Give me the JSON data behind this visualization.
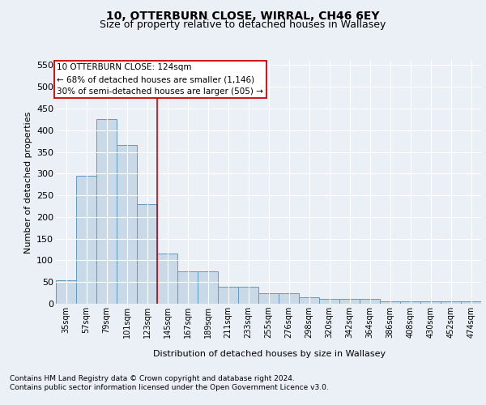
{
  "title1": "10, OTTERBURN CLOSE, WIRRAL, CH46 6EY",
  "title2": "Size of property relative to detached houses in Wallasey",
  "xlabel": "Distribution of detached houses by size in Wallasey",
  "ylabel": "Number of detached properties",
  "categories": [
    "35sqm",
    "57sqm",
    "79sqm",
    "101sqm",
    "123sqm",
    "145sqm",
    "167sqm",
    "189sqm",
    "211sqm",
    "233sqm",
    "255sqm",
    "276sqm",
    "298sqm",
    "320sqm",
    "342sqm",
    "364sqm",
    "386sqm",
    "408sqm",
    "430sqm",
    "452sqm",
    "474sqm"
  ],
  "values": [
    55,
    295,
    425,
    365,
    230,
    115,
    75,
    75,
    40,
    40,
    25,
    25,
    15,
    12,
    12,
    12,
    5,
    5,
    5,
    5,
    5
  ],
  "bar_color": "#c9d9e8",
  "bar_edge_color": "#5f9bc0",
  "ylim": [
    0,
    560
  ],
  "yticks": [
    0,
    50,
    100,
    150,
    200,
    250,
    300,
    350,
    400,
    450,
    500,
    550
  ],
  "vline_x": 4.5,
  "vline_color": "#cc0000",
  "annotation_line1": "10 OTTERBURN CLOSE: 124sqm",
  "annotation_line2": "← 68% of detached houses are smaller (1,146)",
  "annotation_line3": "30% of semi-detached houses are larger (505) →",
  "annotation_box_color": "#ffffff",
  "annotation_box_edge": "#cc0000",
  "footer1": "Contains HM Land Registry data © Crown copyright and database right 2024.",
  "footer2": "Contains public sector information licensed under the Open Government Licence v3.0.",
  "bg_color": "#eaf0f6",
  "plot_bg_color": "#eaf0f6",
  "grid_color": "#ffffff"
}
